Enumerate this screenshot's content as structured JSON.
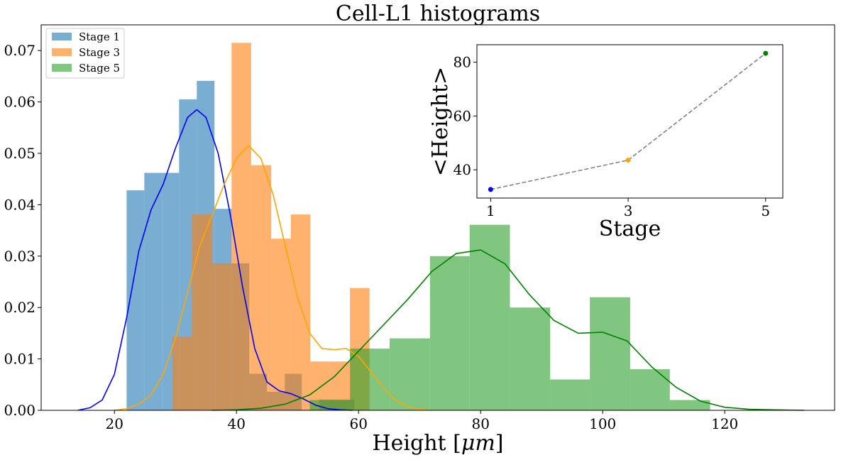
{
  "chart_data": [
    {
      "type": "histogram",
      "title": "Cell-L1 histograms",
      "xlabel": "Height [μm]",
      "ylabel": "",
      "xlim": [
        8,
        138
      ],
      "ylim": [
        0,
        0.075
      ],
      "xticks": [
        20,
        40,
        60,
        80,
        100,
        120
      ],
      "yticks": [
        0.0,
        0.01,
        0.02,
        0.03,
        0.04,
        0.05,
        0.06,
        0.07
      ],
      "ytick_labels": [
        "0.00",
        "0.01",
        "0.02",
        "0.03",
        "0.04",
        "0.05",
        "0.06",
        "0.07"
      ],
      "grid": false,
      "legend": "top-left",
      "series": [
        {
          "name": "Stage 1",
          "color": "#1f77b4",
          "alpha": 0.6,
          "bins": [
            {
              "x0": 22.0,
              "x1": 24.9,
              "density": 0.0428
            },
            {
              "x0": 24.9,
              "x1": 27.8,
              "density": 0.0462
            },
            {
              "x0": 27.8,
              "x1": 30.6,
              "density": 0.0462
            },
            {
              "x0": 30.6,
              "x1": 33.5,
              "density": 0.0605
            },
            {
              "x0": 33.5,
              "x1": 36.4,
              "density": 0.0641
            },
            {
              "x0": 36.4,
              "x1": 39.2,
              "density": 0.0392
            },
            {
              "x0": 39.2,
              "x1": 42.1,
              "density": 0.0286
            },
            {
              "x0": 42.1,
              "x1": 45.0,
              "density": 0.0071
            },
            {
              "x0": 45.0,
              "x1": 47.9,
              "density": 0.0036
            },
            {
              "x0": 47.9,
              "x1": 50.7,
              "density": 0.0071
            },
            {
              "x0": 50.7,
              "x1": 53.6,
              "density": 0.0
            },
            {
              "x0": 53.6,
              "x1": 56.5,
              "density": 0.0021
            },
            {
              "x0": 56.5,
              "x1": 59.3,
              "density": 0.0021
            }
          ],
          "kde": {
            "x": [
              14,
              16,
              18,
              20,
              22,
              24,
              26,
              28,
              30,
              32,
              33.5,
              35,
              37,
              39,
              41,
              43,
              45,
              47,
              49,
              51,
              53,
              55,
              57,
              59
            ],
            "y": [
              0.0,
              0.0005,
              0.002,
              0.007,
              0.018,
              0.031,
              0.039,
              0.044,
              0.051,
              0.057,
              0.0585,
              0.057,
              0.05,
              0.038,
              0.024,
              0.012,
              0.0055,
              0.0038,
              0.0032,
              0.0022,
              0.001,
              0.0003,
              0.0001,
              0.0
            ]
          }
        },
        {
          "name": "Stage 3",
          "color": "#ff7f0e",
          "alpha": 0.6,
          "bins": [
            {
              "x0": 29.5,
              "x1": 32.7,
              "density": 0.0143
            },
            {
              "x0": 32.7,
              "x1": 36.0,
              "density": 0.0381
            },
            {
              "x0": 36.0,
              "x1": 39.2,
              "density": 0.0286
            },
            {
              "x0": 39.2,
              "x1": 42.4,
              "density": 0.0715
            },
            {
              "x0": 42.4,
              "x1": 45.7,
              "density": 0.0477
            },
            {
              "x0": 45.7,
              "x1": 48.9,
              "density": 0.0334
            },
            {
              "x0": 48.9,
              "x1": 52.1,
              "density": 0.0381
            },
            {
              "x0": 52.1,
              "x1": 55.3,
              "density": 0.0095
            },
            {
              "x0": 55.3,
              "x1": 58.6,
              "density": 0.0095
            },
            {
              "x0": 58.6,
              "x1": 61.8,
              "density": 0.0238
            }
          ],
          "kde": {
            "x": [
              20,
              22,
              24,
              26,
              28,
              30,
              32,
              34,
              36,
              38,
              40,
              42,
              44,
              46,
              48,
              50,
              52,
              54,
              56,
              58,
              60,
              62,
              64,
              66,
              68,
              70,
              72
            ],
            "y": [
              0.0,
              0.0003,
              0.0012,
              0.003,
              0.007,
              0.014,
              0.023,
              0.032,
              0.038,
              0.044,
              0.049,
              0.0515,
              0.049,
              0.042,
              0.032,
              0.022,
              0.015,
              0.012,
              0.0118,
              0.012,
              0.0105,
              0.0075,
              0.0045,
              0.002,
              0.0007,
              0.0002,
              0.0
            ]
          }
        },
        {
          "name": "Stage 5",
          "color": "#2ca02c",
          "alpha": 0.6,
          "bins": [
            {
              "x0": 52.0,
              "x1": 58.6,
              "density": 0.002
            },
            {
              "x0": 58.6,
              "x1": 65.1,
              "density": 0.012
            },
            {
              "x0": 65.1,
              "x1": 71.7,
              "density": 0.014
            },
            {
              "x0": 71.7,
              "x1": 78.2,
              "density": 0.03
            },
            {
              "x0": 78.2,
              "x1": 84.8,
              "density": 0.0361
            },
            {
              "x0": 84.8,
              "x1": 91.4,
              "density": 0.02
            },
            {
              "x0": 91.4,
              "x1": 97.9,
              "density": 0.006
            },
            {
              "x0": 97.9,
              "x1": 104.5,
              "density": 0.022
            },
            {
              "x0": 104.5,
              "x1": 111.0,
              "density": 0.008
            },
            {
              "x0": 111.0,
              "x1": 117.6,
              "density": 0.002
            }
          ],
          "kde": {
            "x": [
              36,
              40,
              44,
              48,
              52,
              56,
              60,
              64,
              68,
              72,
              76,
              80,
              84,
              88,
              92,
              96,
              100,
              104,
              108,
              112,
              116,
              120,
              124,
              128,
              133
            ],
            "y": [
              0.0,
              0.0001,
              0.0004,
              0.0012,
              0.003,
              0.0065,
              0.0115,
              0.0165,
              0.0215,
              0.027,
              0.0305,
              0.0312,
              0.0285,
              0.0225,
              0.0175,
              0.015,
              0.0152,
              0.0135,
              0.0085,
              0.0045,
              0.0018,
              0.0006,
              0.0002,
              0.0001,
              0.0
            ]
          }
        }
      ]
    },
    {
      "type": "line",
      "title": "",
      "xlabel": "Stage",
      "ylabel": "<Height>",
      "xticks": [
        1,
        3,
        5
      ],
      "yticks": [
        40,
        60,
        80
      ],
      "xlim": [
        0.8,
        5.25
      ],
      "ylim": [
        29.5,
        86.5
      ],
      "line_color": "#808080",
      "line_style": "dashed",
      "points": [
        {
          "x": 1,
          "y": 32.7,
          "color": "#0000ff"
        },
        {
          "x": 3,
          "y": 43.6,
          "color": "#ffa500"
        },
        {
          "x": 5,
          "y": 83.3,
          "color": "#008000"
        }
      ]
    }
  ]
}
